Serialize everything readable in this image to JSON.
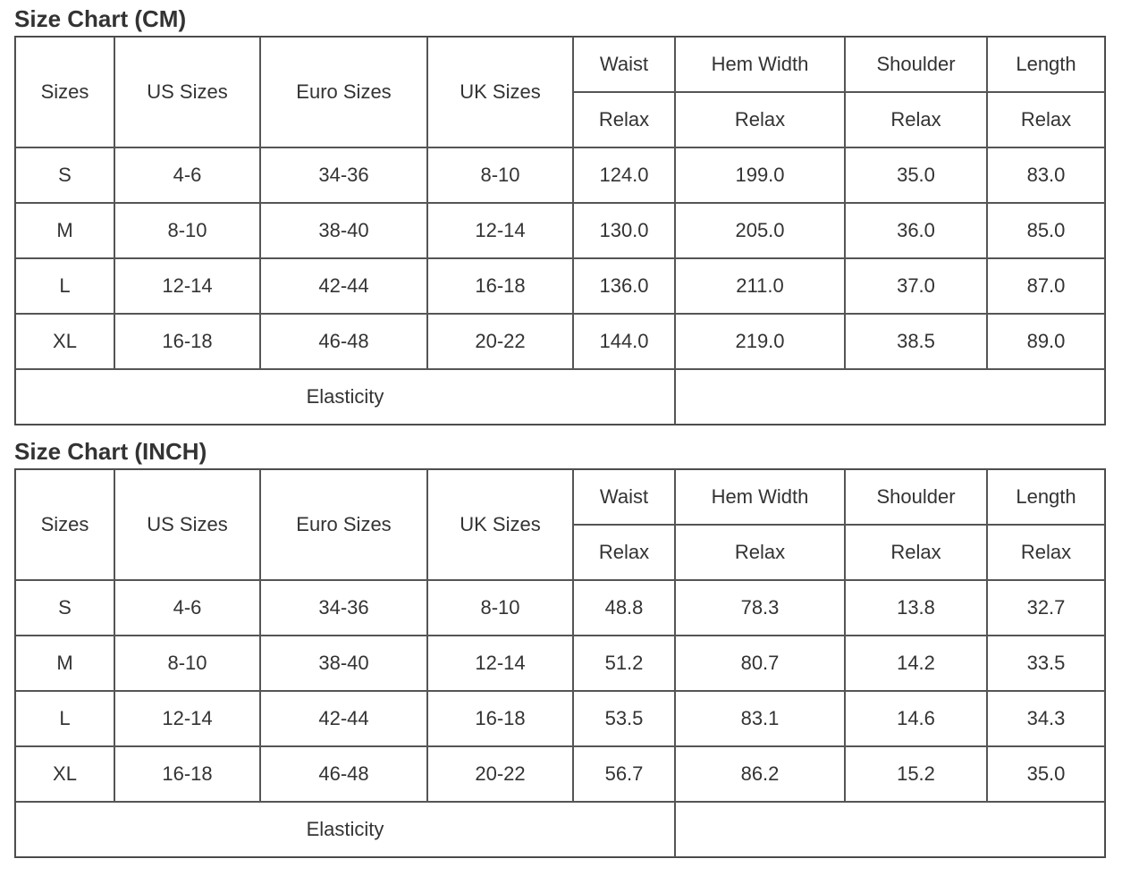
{
  "tables": [
    {
      "title": "Size Chart (CM)",
      "header": [
        "Sizes",
        "US Sizes",
        "Euro Sizes",
        "UK Sizes",
        "Waist",
        "Hem Width",
        "Shoulder",
        "Length"
      ],
      "subheader": [
        "Relax",
        "Relax",
        "Relax",
        "Relax"
      ],
      "rows": [
        [
          "S",
          "4-6",
          "34-36",
          "8-10",
          "124.0",
          "199.0",
          "35.0",
          "83.0"
        ],
        [
          "M",
          "8-10",
          "38-40",
          "12-14",
          "130.0",
          "205.0",
          "36.0",
          "85.0"
        ],
        [
          "L",
          "12-14",
          "42-44",
          "16-18",
          "136.0",
          "211.0",
          "37.0",
          "87.0"
        ],
        [
          "XL",
          "16-18",
          "46-48",
          "20-22",
          "144.0",
          "219.0",
          "38.5",
          "89.0"
        ]
      ],
      "footer": "Elasticity"
    },
    {
      "title": "Size Chart (INCH)",
      "header": [
        "Sizes",
        "US Sizes",
        "Euro Sizes",
        "UK Sizes",
        "Waist",
        "Hem Width",
        "Shoulder",
        "Length"
      ],
      "subheader": [
        "Relax",
        "Relax",
        "Relax",
        "Relax"
      ],
      "rows": [
        [
          "S",
          "4-6",
          "34-36",
          "8-10",
          "48.8",
          "78.3",
          "13.8",
          "32.7"
        ],
        [
          "M",
          "8-10",
          "38-40",
          "12-14",
          "51.2",
          "80.7",
          "14.2",
          "33.5"
        ],
        [
          "L",
          "12-14",
          "42-44",
          "16-18",
          "53.5",
          "83.1",
          "14.6",
          "34.3"
        ],
        [
          "XL",
          "16-18",
          "46-48",
          "20-22",
          "56.7",
          "86.2",
          "15.2",
          "35.0"
        ]
      ],
      "footer": "Elasticity"
    }
  ]
}
